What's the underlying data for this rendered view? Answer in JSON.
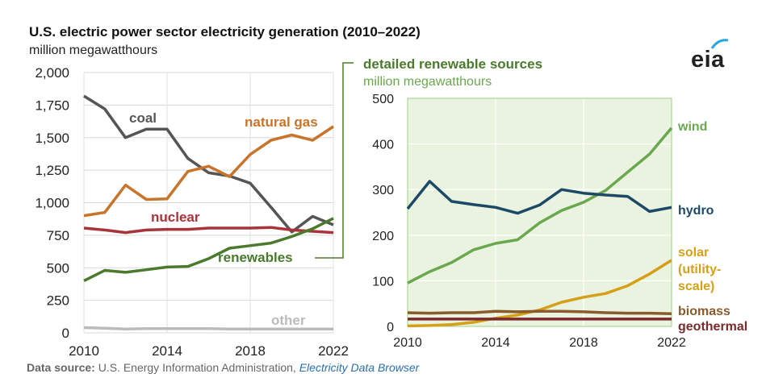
{
  "title": "U.S. electric power sector electricity generation (2010–2022)",
  "subtitle": "million megawatthours",
  "source": {
    "label": "Data source:",
    "text": " U.S. Energy Information Administration, ",
    "link": "Electricity Data Browser"
  },
  "logo": {
    "text": "eia",
    "arc_color": "#2aa7df"
  },
  "chart_data": [
    {
      "type": "line",
      "title": "U.S. electric power sector electricity generation (2010–2022)",
      "ylabel": "million megawatthours",
      "xlim": [
        2010,
        2022
      ],
      "ylim": [
        0,
        2000
      ],
      "x_ticks": [
        "2010",
        "2014",
        "2018",
        "2022"
      ],
      "y_ticks": [
        "0",
        "250",
        "500",
        "750",
        "1,000",
        "1,250",
        "1,500",
        "1,750",
        "2,000"
      ],
      "grid": true,
      "x": [
        2010,
        2011,
        2012,
        2013,
        2014,
        2015,
        2016,
        2017,
        2018,
        2019,
        2020,
        2021,
        2022
      ],
      "series": [
        {
          "name": "coal",
          "color": "#555555",
          "values": [
            1820,
            1720,
            1500,
            1565,
            1565,
            1340,
            1230,
            1205,
            1150,
            965,
            775,
            895,
            830
          ]
        },
        {
          "name": "natural gas",
          "color": "#c8742a",
          "values": [
            900,
            925,
            1135,
            1025,
            1030,
            1240,
            1280,
            1200,
            1370,
            1480,
            1520,
            1480,
            1585
          ]
        },
        {
          "name": "nuclear",
          "color": "#a9333a",
          "values": [
            805,
            790,
            770,
            790,
            795,
            795,
            805,
            805,
            805,
            810,
            790,
            780,
            770
          ]
        },
        {
          "name": "renewables",
          "color": "#4a7a2c",
          "values": [
            400,
            480,
            465,
            485,
            505,
            510,
            570,
            650,
            670,
            690,
            740,
            800,
            880
          ]
        },
        {
          "name": "other",
          "color": "#bbbbbb",
          "values": [
            40,
            35,
            30,
            32,
            33,
            33,
            32,
            30,
            30,
            30,
            30,
            30,
            30
          ]
        }
      ],
      "callout": "renewables"
    },
    {
      "type": "line",
      "title": "detailed renewable sources",
      "ylabel": "million megawatthours",
      "xlim": [
        2010,
        2022
      ],
      "ylim": [
        0,
        500
      ],
      "x_ticks": [
        "2010",
        "2014",
        "2018",
        "2022"
      ],
      "y_ticks": [
        "0",
        "100",
        "200",
        "300",
        "400",
        "500"
      ],
      "grid": true,
      "background": "#eaf3df",
      "x": [
        2010,
        2011,
        2012,
        2013,
        2014,
        2015,
        2016,
        2017,
        2018,
        2019,
        2020,
        2021,
        2022
      ],
      "series": [
        {
          "name": "wind",
          "color": "#6aa84f",
          "values": [
            95,
            120,
            140,
            168,
            182,
            190,
            227,
            254,
            272,
            298,
            338,
            378,
            435
          ]
        },
        {
          "name": "hydro",
          "color": "#1c4a66",
          "values": [
            258,
            318,
            274,
            267,
            261,
            248,
            266,
            300,
            292,
            288,
            285,
            252,
            261
          ]
        },
        {
          "name": "solar (utility-scale)",
          "label_lines": [
            "solar",
            "(utility-",
            "scale)"
          ],
          "color": "#d4a017",
          "values": [
            1,
            2,
            4,
            9,
            18,
            25,
            36,
            53,
            64,
            72,
            89,
            115,
            145
          ]
        },
        {
          "name": "biomass",
          "color": "#8b5a2b",
          "values": [
            30,
            29,
            30,
            30,
            33,
            32,
            33,
            33,
            32,
            30,
            29,
            29,
            28
          ]
        },
        {
          "name": "geothermal",
          "color": "#7a2a2a",
          "values": [
            16,
            16,
            16,
            16,
            16,
            16,
            16,
            16,
            16,
            16,
            16,
            16,
            16
          ]
        }
      ]
    }
  ]
}
